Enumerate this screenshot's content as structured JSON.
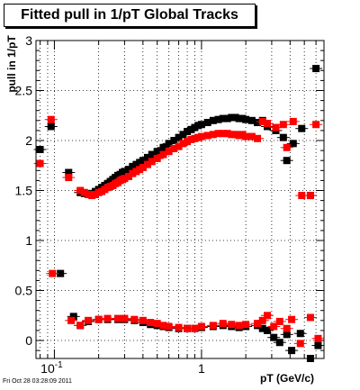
{
  "chart_data": {
    "type": "scatter",
    "title": "Fitted pull in 1/pT  Global Tracks",
    "xlabel": "pT (GeV/c)",
    "ylabel": "pull in 1/pT",
    "x_scale": "log",
    "xlim": [
      0.075,
      6.8
    ],
    "ylim": [
      -0.18,
      3.0
    ],
    "grid": true,
    "x_tick_labels": [
      {
        "value": 0.1,
        "base": "10",
        "exp": "-1"
      },
      {
        "value": 1,
        "text": "1"
      }
    ],
    "y_ticks": [
      0,
      0.5,
      1,
      1.5,
      2,
      2.5,
      3
    ],
    "y_tick_labels": [
      "0",
      "0.5",
      "1",
      "1.5",
      "2",
      "2.5",
      "3"
    ],
    "series": [
      {
        "color": "#000000",
        "marker": "square",
        "points": [
          [
            0.08,
            1.91
          ],
          [
            0.095,
            2.14
          ],
          [
            0.11,
            0.67
          ],
          [
            0.125,
            1.68
          ],
          [
            0.135,
            0.24
          ],
          [
            0.15,
            1.48
          ],
          [
            0.16,
            1.47
          ],
          [
            0.17,
            1.46
          ],
          [
            0.18,
            1.47
          ],
          [
            0.19,
            1.49
          ],
          [
            0.2,
            1.51
          ],
          [
            0.21,
            1.53
          ],
          [
            0.22,
            1.55
          ],
          [
            0.23,
            1.57
          ],
          [
            0.24,
            1.59
          ],
          [
            0.25,
            1.61
          ],
          [
            0.26,
            1.63
          ],
          [
            0.27,
            1.65
          ],
          [
            0.28,
            1.66
          ],
          [
            0.29,
            1.68
          ],
          [
            0.3,
            1.69
          ],
          [
            0.32,
            1.71
          ],
          [
            0.34,
            1.74
          ],
          [
            0.36,
            1.76
          ],
          [
            0.38,
            1.78
          ],
          [
            0.4,
            1.8
          ],
          [
            0.43,
            1.83
          ],
          [
            0.46,
            1.86
          ],
          [
            0.5,
            1.89
          ],
          [
            0.55,
            1.93
          ],
          [
            0.6,
            1.97
          ],
          [
            0.65,
            2.0
          ],
          [
            0.7,
            2.03
          ],
          [
            0.75,
            2.06
          ],
          [
            0.8,
            2.09
          ],
          [
            0.85,
            2.11
          ],
          [
            0.9,
            2.13
          ],
          [
            0.95,
            2.15
          ],
          [
            1.0,
            2.16
          ],
          [
            1.1,
            2.18
          ],
          [
            1.2,
            2.2
          ],
          [
            1.3,
            2.21
          ],
          [
            1.4,
            2.22
          ],
          [
            1.5,
            2.22
          ],
          [
            1.6,
            2.23
          ],
          [
            1.7,
            2.23
          ],
          [
            1.8,
            2.22
          ],
          [
            1.9,
            2.22
          ],
          [
            2.0,
            2.21
          ],
          [
            2.2,
            2.2
          ],
          [
            2.4,
            2.18
          ],
          [
            2.6,
            2.2
          ],
          [
            2.8,
            2.14
          ],
          [
            3.2,
            2.1
          ],
          [
            3.6,
            2.03
          ],
          [
            3.8,
            1.8
          ],
          [
            4.2,
            1.97
          ],
          [
            4.8,
            2.12
          ],
          [
            5.5,
            1.45
          ],
          [
            6.0,
            2.72
          ],
          [
            0.15,
            0.15
          ],
          [
            0.17,
            0.19
          ],
          [
            0.2,
            0.21
          ],
          [
            0.23,
            0.21
          ],
          [
            0.27,
            0.21
          ],
          [
            0.3,
            0.21
          ],
          [
            0.35,
            0.2
          ],
          [
            0.4,
            0.18
          ],
          [
            0.45,
            0.16
          ],
          [
            0.5,
            0.15
          ],
          [
            0.55,
            0.14
          ],
          [
            0.6,
            0.13
          ],
          [
            0.7,
            0.12
          ],
          [
            0.8,
            0.12
          ],
          [
            0.9,
            0.12
          ],
          [
            1.0,
            0.13
          ],
          [
            1.2,
            0.14
          ],
          [
            1.4,
            0.15
          ],
          [
            1.6,
            0.14
          ],
          [
            1.8,
            0.13
          ],
          [
            2.0,
            0.14
          ],
          [
            2.4,
            0.15
          ],
          [
            2.6,
            0.12
          ],
          [
            2.8,
            0.1
          ],
          [
            3.1,
            0.03
          ],
          [
            3.4,
            -0.02
          ],
          [
            3.8,
            0.06
          ],
          [
            4.1,
            -0.1
          ],
          [
            4.7,
            0.07
          ],
          [
            5.5,
            -0.18
          ],
          [
            6.2,
            -0.05
          ]
        ]
      },
      {
        "color": "#ff0000",
        "marker": "square",
        "points": [
          [
            0.08,
            1.77
          ],
          [
            0.095,
            2.21
          ],
          [
            0.097,
            0.67
          ],
          [
            0.125,
            1.63
          ],
          [
            0.13,
            0.2
          ],
          [
            0.15,
            1.5
          ],
          [
            0.16,
            1.48
          ],
          [
            0.17,
            1.46
          ],
          [
            0.18,
            1.45
          ],
          [
            0.19,
            1.46
          ],
          [
            0.2,
            1.48
          ],
          [
            0.21,
            1.49
          ],
          [
            0.22,
            1.51
          ],
          [
            0.23,
            1.53
          ],
          [
            0.24,
            1.54
          ],
          [
            0.25,
            1.55
          ],
          [
            0.26,
            1.57
          ],
          [
            0.27,
            1.58
          ],
          [
            0.28,
            1.6
          ],
          [
            0.29,
            1.61
          ],
          [
            0.3,
            1.62
          ],
          [
            0.32,
            1.64
          ],
          [
            0.34,
            1.67
          ],
          [
            0.36,
            1.69
          ],
          [
            0.38,
            1.71
          ],
          [
            0.4,
            1.73
          ],
          [
            0.43,
            1.76
          ],
          [
            0.46,
            1.79
          ],
          [
            0.5,
            1.82
          ],
          [
            0.55,
            1.86
          ],
          [
            0.6,
            1.89
          ],
          [
            0.65,
            1.92
          ],
          [
            0.7,
            1.94
          ],
          [
            0.75,
            1.97
          ],
          [
            0.8,
            1.99
          ],
          [
            0.85,
            2.01
          ],
          [
            0.9,
            2.02
          ],
          [
            0.95,
            2.03
          ],
          [
            1.0,
            2.04
          ],
          [
            1.1,
            2.05
          ],
          [
            1.2,
            2.06
          ],
          [
            1.3,
            2.07
          ],
          [
            1.4,
            2.07
          ],
          [
            1.5,
            2.07
          ],
          [
            1.6,
            2.06
          ],
          [
            1.7,
            2.06
          ],
          [
            1.8,
            2.05
          ],
          [
            1.9,
            2.06
          ],
          [
            2.0,
            2.04
          ],
          [
            2.2,
            2.04
          ],
          [
            2.4,
            2.02
          ],
          [
            2.6,
            2.19
          ],
          [
            2.8,
            2.17
          ],
          [
            3.2,
            2.13
          ],
          [
            3.6,
            2.16
          ],
          [
            3.8,
            1.93
          ],
          [
            4.2,
            2.19
          ],
          [
            4.8,
            1.45
          ],
          [
            5.5,
            1.45
          ],
          [
            6.0,
            2.16
          ],
          [
            0.15,
            0.15
          ],
          [
            0.17,
            0.2
          ],
          [
            0.2,
            0.21
          ],
          [
            0.23,
            0.22
          ],
          [
            0.27,
            0.22
          ],
          [
            0.3,
            0.22
          ],
          [
            0.35,
            0.21
          ],
          [
            0.4,
            0.2
          ],
          [
            0.45,
            0.18
          ],
          [
            0.5,
            0.17
          ],
          [
            0.55,
            0.15
          ],
          [
            0.6,
            0.14
          ],
          [
            0.7,
            0.13
          ],
          [
            0.8,
            0.12
          ],
          [
            0.9,
            0.12
          ],
          [
            1.0,
            0.14
          ],
          [
            1.2,
            0.15
          ],
          [
            1.4,
            0.17
          ],
          [
            1.6,
            0.16
          ],
          [
            1.8,
            0.15
          ],
          [
            2.0,
            0.16
          ],
          [
            2.4,
            0.17
          ],
          [
            2.6,
            0.2
          ],
          [
            2.8,
            0.25
          ],
          [
            3.1,
            0.14
          ],
          [
            3.4,
            0.19
          ],
          [
            3.8,
            0.12
          ],
          [
            4.1,
            0.21
          ],
          [
            4.7,
            -0.03
          ],
          [
            5.5,
            0.23
          ],
          [
            6.2,
            0.02
          ]
        ]
      }
    ]
  },
  "footer": {
    "datestamp": "Fri Oct 28 03:28:09 2011"
  }
}
